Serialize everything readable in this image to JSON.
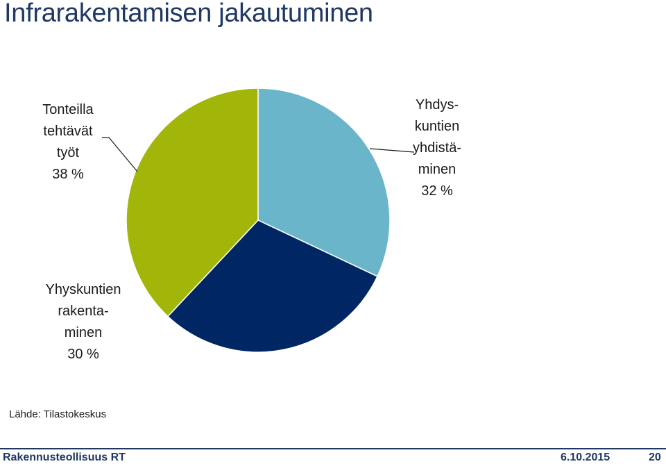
{
  "title": "Infrarakentamisen jakautuminen",
  "source": "Lähde: Tilastokeskus",
  "footer": {
    "left": "Rakennusteollisuus RT",
    "date": "6.10.2015",
    "page": "20"
  },
  "chart_data": {
    "type": "pie",
    "title": "Infrarakentamisen jakautuminen",
    "slices": [
      {
        "label_lines": [
          "Yhdys-",
          "kuntien",
          "yhdistä-",
          "minen",
          "32 %"
        ],
        "value": 32,
        "color": "#6BB5CA"
      },
      {
        "label_lines": [
          "Yhyskuntien",
          "rakenta-",
          "minen",
          "30 %"
        ],
        "value": 30,
        "color": "#002663"
      },
      {
        "label_lines": [
          "Tonteilla",
          "tehtävät",
          "työt",
          "38 %"
        ],
        "value": 38,
        "color": "#A2B609"
      }
    ]
  }
}
